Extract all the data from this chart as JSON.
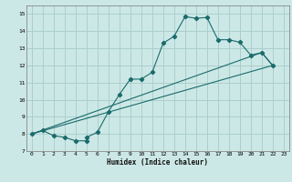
{
  "xlabel": "Humidex (Indice chaleur)",
  "xlim": [
    -0.5,
    23.5
  ],
  "ylim": [
    7,
    15.5
  ],
  "xticks": [
    0,
    1,
    2,
    3,
    4,
    5,
    6,
    7,
    8,
    9,
    10,
    11,
    12,
    13,
    14,
    15,
    16,
    17,
    18,
    19,
    20,
    21,
    22,
    23
  ],
  "yticks": [
    7,
    8,
    9,
    10,
    11,
    12,
    13,
    14,
    15
  ],
  "bg_color": "#cce8e6",
  "grid_color": "#aacfcd",
  "line_color": "#1a6b6b",
  "series1_x": [
    0,
    1,
    2,
    3,
    4,
    5,
    5,
    6,
    7,
    8,
    9,
    10,
    11,
    12,
    13,
    14,
    15,
    16,
    17,
    18,
    19,
    20,
    21,
    22
  ],
  "series1_y": [
    8.0,
    8.2,
    7.9,
    7.8,
    7.6,
    7.6,
    7.8,
    8.1,
    9.3,
    10.3,
    11.2,
    11.2,
    11.6,
    13.3,
    13.7,
    14.85,
    14.75,
    14.8,
    13.5,
    13.5,
    13.35,
    12.6,
    12.75,
    12.0
  ],
  "series2_x": [
    0,
    22
  ],
  "series2_y": [
    8.0,
    12.0
  ],
  "series3_x": [
    0,
    21,
    22
  ],
  "series3_y": [
    8.0,
    12.75,
    12.0
  ]
}
